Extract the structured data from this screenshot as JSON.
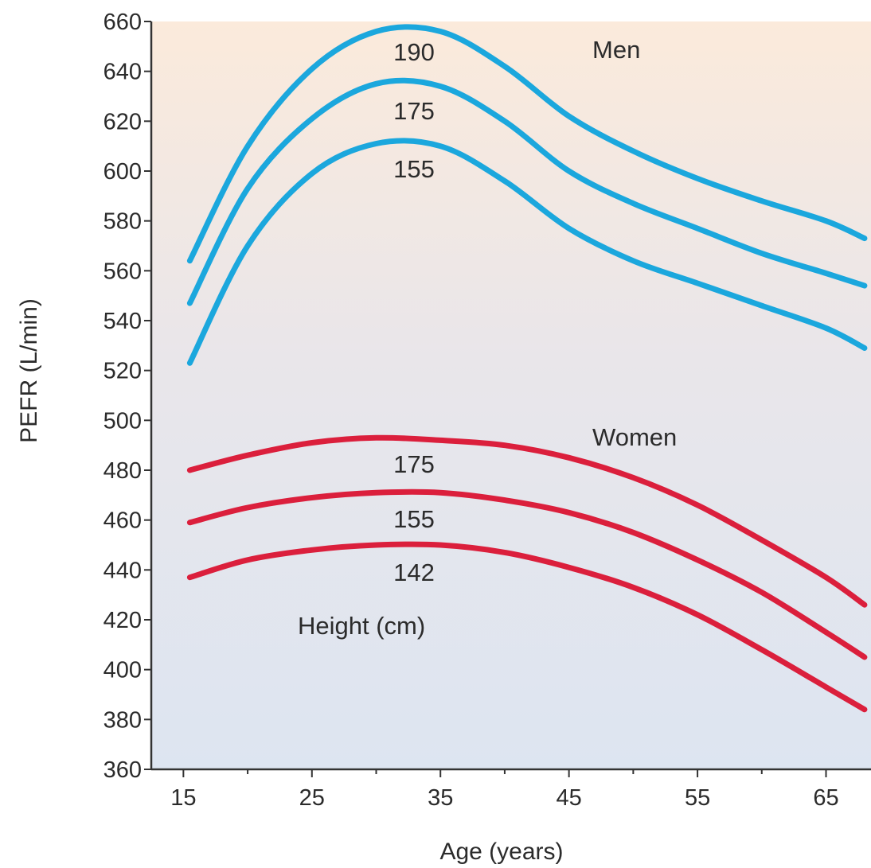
{
  "chart_data": {
    "type": "line",
    "title": "",
    "xlabel": "Age (years)",
    "ylabel": "PEFR (L/min)",
    "xlim": [
      12.5,
      68.5
    ],
    "ylim": [
      360,
      660
    ],
    "x_ticks": [
      15,
      25,
      35,
      45,
      55,
      65
    ],
    "y_ticks": [
      360,
      380,
      400,
      420,
      440,
      460,
      480,
      500,
      520,
      540,
      560,
      580,
      600,
      620,
      640,
      660
    ],
    "grid": false,
    "colors": {
      "men": "#1ba7dd",
      "women": "#db1f3c",
      "background_top": "#fbeadb",
      "background_bottom": "#dde5f1"
    },
    "annotations": {
      "men": "Men",
      "women": "Women",
      "height_legend": "Height (cm)"
    },
    "series": [
      {
        "name": "190",
        "group": "Men",
        "x": [
          15.5,
          20,
          25,
          30,
          35,
          40,
          45,
          50,
          55,
          60,
          65,
          68
        ],
        "y": [
          564,
          610,
          641,
          656,
          656,
          642,
          622,
          608,
          597,
          588,
          580,
          573
        ]
      },
      {
        "name": "175",
        "group": "Men",
        "x": [
          15.5,
          20,
          25,
          30,
          35,
          40,
          45,
          50,
          55,
          60,
          65,
          68
        ],
        "y": [
          547,
          593,
          621,
          635,
          634,
          620,
          600,
          587,
          577,
          567,
          559,
          554
        ]
      },
      {
        "name": "155",
        "group": "Men",
        "x": [
          15.5,
          20,
          25,
          30,
          35,
          40,
          45,
          50,
          55,
          60,
          65,
          68
        ],
        "y": [
          523,
          570,
          599,
          611,
          610,
          596,
          577,
          564,
          555,
          546,
          537,
          529
        ]
      },
      {
        "name": "175",
        "group": "Women",
        "x": [
          15.5,
          20,
          25,
          30,
          35,
          40,
          45,
          50,
          55,
          60,
          65,
          68
        ],
        "y": [
          480,
          486,
          491,
          493,
          492,
          490,
          485,
          477,
          466,
          452,
          437,
          426
        ]
      },
      {
        "name": "155",
        "group": "Women",
        "x": [
          15.5,
          20,
          25,
          30,
          35,
          40,
          45,
          50,
          55,
          60,
          65,
          68
        ],
        "y": [
          459,
          465,
          469,
          471,
          471,
          468,
          463,
          455,
          444,
          431,
          415,
          405
        ]
      },
      {
        "name": "142",
        "group": "Women",
        "x": [
          15.5,
          20,
          25,
          30,
          35,
          40,
          45,
          50,
          55,
          60,
          65,
          68
        ],
        "y": [
          437,
          444,
          448,
          450,
          450,
          447,
          441,
          433,
          422,
          408,
          393,
          384
        ]
      }
    ]
  }
}
